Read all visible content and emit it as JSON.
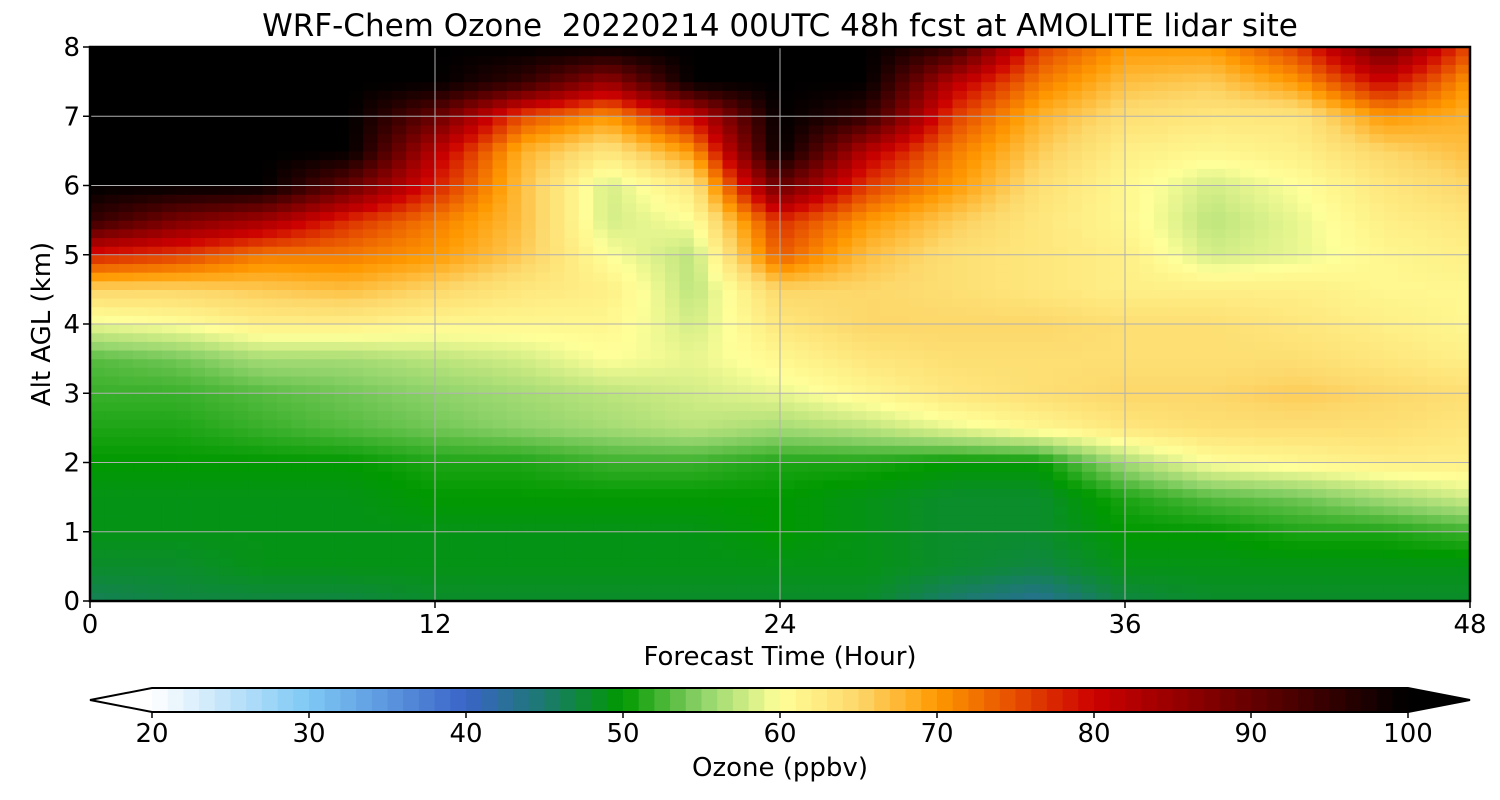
{
  "chart_data": {
    "type": "heatmap",
    "title": "WRF-Chem Ozone  20220214 00UTC 48h fcst at AMOLITE lidar site",
    "xlabel": "Forecast Time (Hour)",
    "ylabel": "Alt AGL (km)",
    "xlim": [
      0,
      48
    ],
    "ylim": [
      0,
      8
    ],
    "x_ticks": [
      "0",
      "12",
      "24",
      "36",
      "48"
    ],
    "y_ticks": [
      "0",
      "1",
      "2",
      "3",
      "4",
      "5",
      "6",
      "7",
      "8"
    ],
    "grid": true,
    "colorbar": {
      "label": "Ozone  (ppbv)",
      "range": [
        20,
        100
      ],
      "ticks": [
        "20",
        "30",
        "40",
        "50",
        "60",
        "70",
        "80",
        "90",
        "100"
      ],
      "extend": "both",
      "stops": [
        {
          "v": 20,
          "c": "#ffffff"
        },
        {
          "v": 30,
          "c": "#7ec8f4"
        },
        {
          "v": 40,
          "c": "#3a64c8"
        },
        {
          "v": 45,
          "c": "#1b7a6e"
        },
        {
          "v": 50,
          "c": "#009900"
        },
        {
          "v": 55,
          "c": "#8ed26a"
        },
        {
          "v": 60,
          "c": "#ffff99"
        },
        {
          "v": 65,
          "c": "#fdd76a"
        },
        {
          "v": 70,
          "c": "#ff9900"
        },
        {
          "v": 80,
          "c": "#cc0000"
        },
        {
          "v": 90,
          "c": "#660000"
        },
        {
          "v": 100,
          "c": "#000000"
        }
      ]
    },
    "hours": [
      0,
      3,
      6,
      9,
      12,
      15,
      18,
      21,
      24,
      27,
      30,
      33,
      36,
      39,
      42,
      45,
      48
    ],
    "altitudes_km": [
      0,
      0.5,
      1,
      1.5,
      2,
      2.5,
      3,
      3.5,
      4,
      4.5,
      5,
      5.5,
      6,
      6.5,
      7,
      7.5,
      8
    ],
    "ozone_ppbv": [
      [
        46,
        47,
        47,
        47,
        48,
        48,
        48,
        48,
        48,
        48,
        45,
        43,
        47,
        48,
        48,
        48,
        48
      ],
      [
        48,
        48,
        49,
        49,
        49,
        49,
        49,
        49,
        49,
        49,
        48,
        47,
        49,
        49,
        49,
        49,
        49
      ],
      [
        49,
        49,
        49,
        49,
        49,
        49,
        49,
        49,
        50,
        49,
        48,
        48,
        50,
        50,
        51,
        51,
        52
      ],
      [
        49,
        49,
        49,
        49,
        50,
        50,
        50,
        50,
        50,
        49,
        48,
        48,
        51,
        53,
        54,
        56,
        58
      ],
      [
        50,
        50,
        50,
        50,
        51,
        51,
        52,
        52,
        51,
        51,
        50,
        50,
        56,
        60,
        61,
        62,
        62
      ],
      [
        51,
        51,
        52,
        53,
        54,
        55,
        56,
        57,
        56,
        57,
        59,
        61,
        63,
        64,
        64,
        64,
        63
      ],
      [
        52,
        52,
        53,
        54,
        55,
        56,
        57,
        58,
        59,
        61,
        63,
        64,
        65,
        65,
        66,
        65,
        64
      ],
      [
        53,
        54,
        56,
        56,
        57,
        58,
        60,
        59,
        61,
        63,
        64,
        64,
        64,
        64,
        64,
        63,
        62
      ],
      [
        59,
        60,
        62,
        62,
        61,
        61,
        61,
        58,
        63,
        65,
        65,
        65,
        64,
        64,
        63,
        62,
        61
      ],
      [
        65,
        65,
        66,
        67,
        65,
        63,
        62,
        57,
        65,
        65,
        64,
        63,
        62,
        62,
        62,
        61,
        61
      ],
      [
        78,
        76,
        72,
        72,
        70,
        66,
        60,
        57,
        74,
        67,
        64,
        63,
        62,
        58,
        59,
        61,
        62
      ],
      [
        95,
        88,
        84,
        77,
        72,
        67,
        58,
        60,
        77,
        70,
        66,
        63,
        61,
        57,
        59,
        62,
        63
      ],
      [
        100,
        100,
        100,
        90,
        78,
        67,
        58,
        63,
        90,
        76,
        70,
        64,
        61,
        58,
        60,
        63,
        65
      ],
      [
        100,
        100,
        100,
        100,
        82,
        68,
        63,
        70,
        100,
        82,
        72,
        66,
        62,
        61,
        62,
        65,
        67
      ],
      [
        100,
        100,
        100,
        100,
        90,
        75,
        70,
        80,
        100,
        95,
        76,
        68,
        64,
        63,
        63,
        70,
        68
      ],
      [
        100,
        100,
        100,
        100,
        100,
        95,
        85,
        100,
        100,
        100,
        82,
        72,
        67,
        66,
        70,
        80,
        70
      ],
      [
        100,
        100,
        100,
        100,
        100,
        100,
        100,
        100,
        100,
        100,
        95,
        76,
        70,
        70,
        76,
        90,
        75
      ]
    ]
  }
}
